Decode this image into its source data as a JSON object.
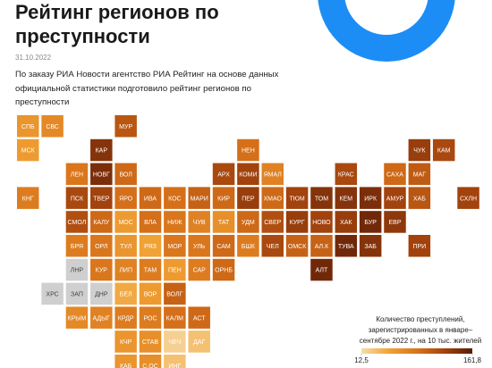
{
  "chart_data": {
    "type": "tile_map",
    "title": "Рейтинг регионов по преступности",
    "date": "31.10.2022",
    "description": "По заказу РИА Новости агентство РИА Рейтинг на основе данных официальной статистики подготовило рейтинг регионов по преступности",
    "legend_title": "Количество преступлений, зарегистрированных в январе–сентябре 2022 г., на 10 тыс. жителей",
    "categories": [
      "СПБ",
      "СВС",
      "МУР",
      "МСК",
      "КАР",
      "НЕН",
      "ЧУК",
      "КАМ",
      "ЛЕН",
      "НОВГ",
      "ВОЛ",
      "АРХ",
      "КОМИ",
      "ЯМАЛ",
      "КРАС",
      "САХА",
      "МАГ",
      "КНГ",
      "ПСК",
      "ТВЕР",
      "ЯРО",
      "ИВА",
      "КОС",
      "МАРИ",
      "КИР",
      "ПЕР",
      "ХМАО",
      "ТЮМ",
      "ТОМ",
      "КЕМ",
      "ИРК",
      "АМУР",
      "ХАБ",
      "СХЛН",
      "СМОЛ",
      "КАЛУ",
      "МОС",
      "ВЛА",
      "НИЖ",
      "ЧУВ",
      "ТАТ",
      "УДМ",
      "СВЕР",
      "КУРГ",
      "НОВО",
      "ХАК",
      "БУР",
      "ЕВР",
      "БРЯ",
      "ОРЛ",
      "ТУЛ",
      "РЯЗ",
      "МОР",
      "УЛЬ",
      "САМ",
      "БШК",
      "ЧЕЛ",
      "ОМСК",
      "АЛ.К",
      "ТУВА",
      "ЗАБ",
      "ПРИ",
      "ЛНР",
      "КУР",
      "ЛИП",
      "ТАМ",
      "ПЕН",
      "САР",
      "ОРНБ",
      "АЛТ",
      "ХРС",
      "ЗАП",
      "ДНР",
      "БЕЛ",
      "ВОР",
      "ВОЛГ",
      "КРЫМ",
      "АДЫГ",
      "КРДР",
      "РОС",
      "КАЛМ",
      "АСТ",
      "КЧР",
      "СТАВ",
      "ЧЕЧ",
      "ДАГ",
      "КАБ",
      "С.ОС",
      "ИНГ"
    ],
    "values": [
      60,
      70,
      110,
      55,
      140,
      90,
      130,
      120,
      85,
      145,
      95,
      120,
      125,
      75,
      120,
      95,
      105,
      80,
      120,
      125,
      90,
      95,
      90,
      100,
      95,
      130,
      95,
      125,
      140,
      140,
      145,
      125,
      110,
      125,
      115,
      95,
      55,
      90,
      85,
      75,
      65,
      95,
      115,
      130,
      125,
      130,
      150,
      135,
      80,
      85,
      60,
      50,
      85,
      85,
      95,
      80,
      120,
      100,
      100,
      150,
      140,
      125,
      null,
      85,
      75,
      80,
      55,
      80,
      95,
      150,
      null,
      null,
      null,
      45,
      55,
      100,
      70,
      75,
      80,
      80,
      90,
      95,
      60,
      65,
      20,
      30,
      60,
      65,
      30
    ],
    "clim": [
      12.5,
      161.8
    ],
    "cticks": [
      {
        "value": 12.5,
        "label": "12,5"
      },
      {
        "value": 161.8,
        "label": "161,8"
      }
    ],
    "color_scale": [
      "#f7dcaa",
      "#f0a235",
      "#d9731a",
      "#a3430d",
      "#5a1c05"
    ],
    "missing_color": "#cfcfcf"
  }
}
